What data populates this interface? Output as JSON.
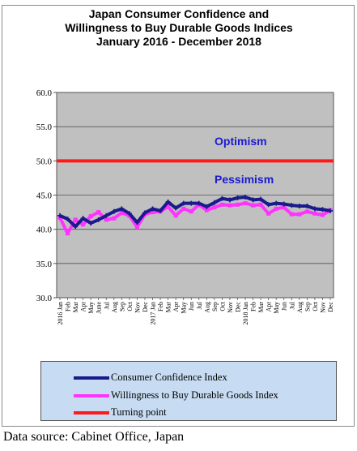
{
  "colors": {
    "plot_bg": "#c0c0c0",
    "series1": "#1a1a8c",
    "series2": "#ff33ff",
    "turning": "#ff1a1a",
    "annotation": "#1a1ad0",
    "legend_bg": "#c7dcf2"
  },
  "chart_data": {
    "type": "line",
    "title_lines": [
      "Japan Consumer Confidence and",
      "Willingness to Buy Durable Goods Indices",
      "January 2016 - December 2018"
    ],
    "ylim": [
      30,
      60
    ],
    "yticks": [
      "60.0",
      "55.0",
      "50.0",
      "45.0",
      "40.0",
      "35.0",
      "30.0"
    ],
    "ytick_values": [
      60,
      55,
      50,
      45,
      40,
      35,
      30
    ],
    "grid": true,
    "legend_position": "bottom",
    "x_labels": [
      "2016 Jan",
      "Feb",
      "Mar",
      "Apr",
      "May",
      "June",
      "Jul",
      "Aug",
      "Sep",
      "Oct",
      "Nov",
      "Dec",
      "2017 Jan",
      "Feb",
      "Mar",
      "Apr",
      "May",
      "Jun",
      "Jul",
      "Aug",
      "Sep",
      "Oct",
      "Nov",
      "Dec",
      "2018 Jan",
      "Feb",
      "Mar",
      "Apr",
      "May",
      "Jun",
      "Jul",
      "Aug",
      "Sep",
      "Oct",
      "Nov",
      "Dec"
    ],
    "series": [
      {
        "name": "Consumer Confidence Index",
        "values": [
          42.0,
          41.5,
          40.4,
          41.6,
          40.9,
          41.4,
          42.0,
          42.6,
          43.0,
          42.3,
          41.0,
          42.4,
          43.0,
          42.7,
          44.0,
          43.1,
          43.8,
          43.8,
          43.8,
          43.3,
          43.9,
          44.5,
          44.3,
          44.6,
          44.7,
          44.3,
          44.4,
          43.6,
          43.8,
          43.7,
          43.5,
          43.4,
          43.4,
          43.0,
          42.9,
          42.7
        ]
      },
      {
        "name": "Willingness to Buy Durable Goods Index",
        "values": [
          41.7,
          39.4,
          41.4,
          40.7,
          41.9,
          42.5,
          41.4,
          41.6,
          42.4,
          42.0,
          40.3,
          42.2,
          42.5,
          42.6,
          43.3,
          42.0,
          43.0,
          42.6,
          43.6,
          42.8,
          43.2,
          43.6,
          43.5,
          43.6,
          43.8,
          43.5,
          43.6,
          42.3,
          43.0,
          43.2,
          42.2,
          42.2,
          42.6,
          42.3,
          42.1,
          42.8
        ]
      },
      {
        "name": "Turning point",
        "values": [
          50,
          50,
          50,
          50,
          50,
          50,
          50,
          50,
          50,
          50,
          50,
          50,
          50,
          50,
          50,
          50,
          50,
          50,
          50,
          50,
          50,
          50,
          50,
          50,
          50,
          50,
          50,
          50,
          50,
          50,
          50,
          50,
          50,
          50,
          50,
          50
        ]
      }
    ],
    "annotations": [
      "Optimism",
      "Pessimism"
    ]
  },
  "legend": {
    "items": [
      "Consumer Confidence Index",
      "Willingness to Buy Durable Goods Index",
      "Turning point"
    ]
  },
  "source": "Data source: Cabinet Office, Japan"
}
